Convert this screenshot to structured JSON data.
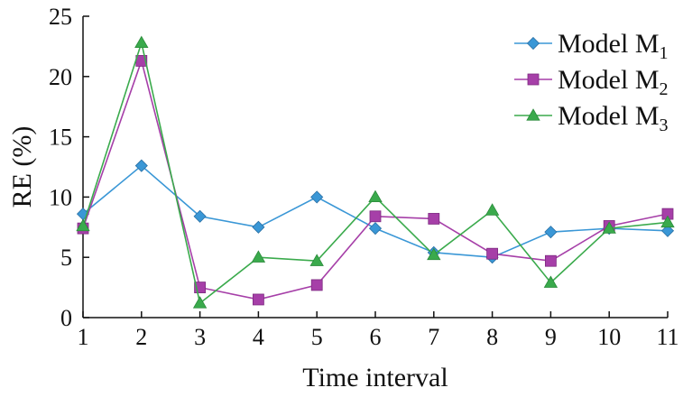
{
  "chart_data": {
    "type": "line",
    "xlabel": "Time interval",
    "ylabel": "RE (%)",
    "x": [
      1,
      2,
      3,
      4,
      5,
      6,
      7,
      8,
      9,
      10,
      11
    ],
    "xticks": [
      "1",
      "2",
      "3",
      "4",
      "5",
      "6",
      "7",
      "8",
      "9",
      "10",
      "11"
    ],
    "ylim": [
      0,
      25
    ],
    "yticks": [
      "0",
      "5",
      "10",
      "15",
      "20",
      "25"
    ],
    "grid": false,
    "legend_position": "top-right",
    "series": [
      {
        "name": "Model M",
        "subscript": "1",
        "marker": "diamond",
        "color": "#3a97d6",
        "values": [
          8.6,
          12.6,
          8.4,
          7.5,
          10.0,
          7.4,
          5.4,
          5.0,
          7.1,
          7.4,
          7.2
        ]
      },
      {
        "name": "Model M",
        "subscript": "2",
        "marker": "square",
        "color": "#a63fa8",
        "values": [
          7.4,
          21.3,
          2.5,
          1.5,
          2.7,
          8.4,
          8.2,
          5.3,
          4.7,
          7.6,
          8.6
        ]
      },
      {
        "name": "Model M",
        "subscript": "3",
        "marker": "triangle",
        "color": "#3aaa4c",
        "values": [
          7.6,
          22.8,
          1.2,
          5.0,
          4.7,
          10.0,
          5.2,
          8.9,
          2.9,
          7.4,
          7.9
        ]
      }
    ]
  }
}
